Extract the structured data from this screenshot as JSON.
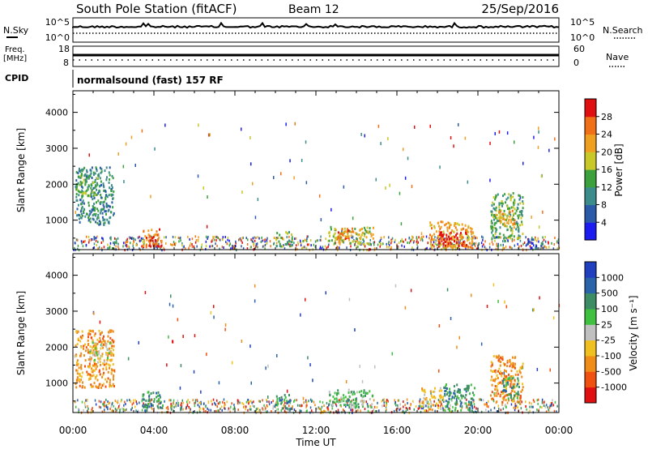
{
  "header": {
    "station": "South Pole Station (fitACF)",
    "beam": "Beam 12",
    "date": "25/Sep/2016"
  },
  "sky_panel": {
    "left_label": "N.Sky",
    "right_label": "N.Search",
    "left_ticks": [
      "10^5",
      "10^0"
    ],
    "right_ticks": [
      "10^5",
      "10^0"
    ]
  },
  "freq_panel": {
    "left_label_1": "Freq.",
    "left_label_2": "[MHz]",
    "right_label": "Nave",
    "left_ticks": [
      "18",
      "8"
    ],
    "right_ticks": [
      "60",
      "0"
    ]
  },
  "cpid": {
    "label": "CPID",
    "text": "normalsound (fast) 157 RF"
  },
  "chart_data": [
    {
      "type": "heatmap",
      "title": "",
      "ylabel": "Slant Range [km]",
      "xlabel": "",
      "ylim": [
        180,
        4600
      ],
      "yticks": [
        1000,
        2000,
        3000,
        4000
      ],
      "x_ticks": [
        "00:00",
        "04:00",
        "08:00",
        "12:00",
        "16:00",
        "20:00",
        "00:00"
      ],
      "colorbar": {
        "label": "Power [dB]",
        "ticks": [
          "4",
          "8",
          "12",
          "16",
          "20",
          "24",
          "28"
        ],
        "colors": [
          "#1c1cf0",
          "#2a5aa8",
          "#3c8c8c",
          "#3ca03c",
          "#c8c828",
          "#f0a020",
          "#f07018",
          "#e01010"
        ]
      },
      "patches": [
        {
          "t": [
            0.1,
            2.0
          ],
          "r": [
            900,
            2500
          ],
          "level": 2
        },
        {
          "t": [
            0.1,
            1.2
          ],
          "r": [
            1700,
            2300
          ],
          "level": 3
        },
        {
          "t": [
            3.4,
            4.4
          ],
          "r": [
            250,
            800
          ],
          "level": 6
        },
        {
          "t": [
            3.7,
            4.2
          ],
          "r": [
            280,
            600
          ],
          "level": 7
        },
        {
          "t": [
            10.0,
            10.8
          ],
          "r": [
            300,
            700
          ],
          "level": 3
        },
        {
          "t": [
            12.6,
            14.8
          ],
          "r": [
            350,
            850
          ],
          "level": 4
        },
        {
          "t": [
            13.0,
            13.8
          ],
          "r": [
            500,
            800
          ],
          "level": 6
        },
        {
          "t": [
            17.6,
            19.8
          ],
          "r": [
            250,
            1000
          ],
          "level": 5
        },
        {
          "t": [
            18.0,
            19.4
          ],
          "r": [
            280,
            700
          ],
          "level": 7
        },
        {
          "t": [
            20.6,
            22.2
          ],
          "r": [
            500,
            1800
          ],
          "level": 3
        },
        {
          "t": [
            21.0,
            21.8
          ],
          "r": [
            800,
            1300
          ],
          "level": 5
        },
        {
          "t": [
            22.4,
            23.2
          ],
          "r": [
            250,
            500
          ],
          "level": 1
        }
      ]
    },
    {
      "type": "heatmap",
      "title": "",
      "ylabel": "Slant Range [km]",
      "xlabel": "Time UT",
      "ylim": [
        180,
        4600
      ],
      "yticks": [
        1000,
        2000,
        3000,
        4000
      ],
      "x_ticks": [
        "00:00",
        "04:00",
        "08:00",
        "12:00",
        "16:00",
        "20:00",
        "00:00"
      ],
      "colorbar": {
        "label": "Velocity [m s⁻¹]",
        "ticks": [
          "1000",
          "500",
          "100",
          "25",
          "-25",
          "-100",
          "-500",
          "-1000"
        ],
        "colors": [
          "#2040c0",
          "#2a64a8",
          "#3c8c64",
          "#40c040",
          "#c0c0c0",
          "#f0c020",
          "#f08c18",
          "#f05010",
          "#e01010"
        ]
      },
      "patches": [
        {
          "t": [
            0.1,
            2.0
          ],
          "r": [
            900,
            2500
          ],
          "level": 6
        },
        {
          "t": [
            0.8,
            1.8
          ],
          "r": [
            1600,
            2200
          ],
          "level": 4
        },
        {
          "t": [
            3.4,
            4.4
          ],
          "r": [
            250,
            800
          ],
          "level": 2
        },
        {
          "t": [
            10.0,
            10.8
          ],
          "r": [
            300,
            700
          ],
          "level": 2
        },
        {
          "t": [
            12.0,
            12.6
          ],
          "r": [
            200,
            350
          ],
          "level": 6
        },
        {
          "t": [
            12.6,
            14.8
          ],
          "r": [
            350,
            850
          ],
          "level": 3
        },
        {
          "t": [
            17.2,
            18.2
          ],
          "r": [
            250,
            900
          ],
          "level": 5
        },
        {
          "t": [
            18.2,
            19.8
          ],
          "r": [
            250,
            1000
          ],
          "level": 2
        },
        {
          "t": [
            20.6,
            22.2
          ],
          "r": [
            500,
            1800
          ],
          "level": 6
        },
        {
          "t": [
            21.2,
            22.0
          ],
          "r": [
            600,
            1200
          ],
          "level": 2
        }
      ]
    }
  ]
}
